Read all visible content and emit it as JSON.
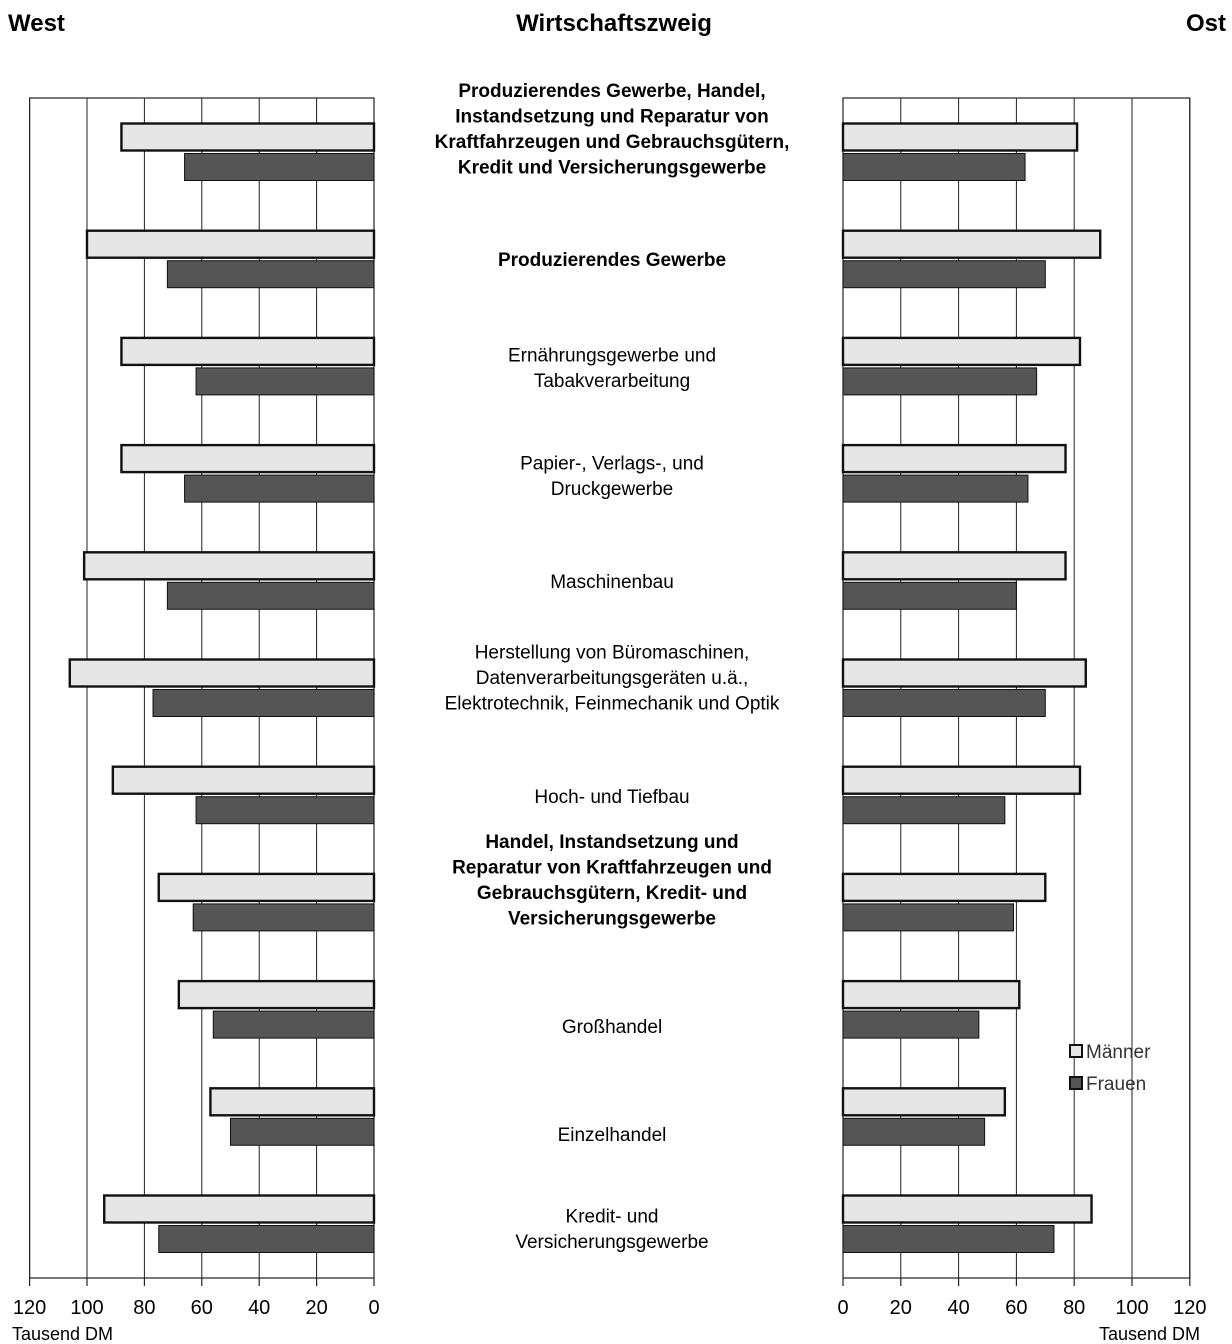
{
  "chart_data": {
    "type": "bar",
    "orientation": "horizontal",
    "layout": "butterfly",
    "header": {
      "left": "West",
      "center": "Wirtschaftszweig",
      "right": "Ost"
    },
    "categories": [
      {
        "lines": [
          "Produzierendes Gewerbe, Handel,",
          "Instandsetzung und Reparatur von",
          "Kraftfahrzeugen und Gebrauchsgütern,",
          "Kredit und Versicherungsgewerbe"
        ],
        "bold": true
      },
      {
        "lines": [
          "Produzierendes Gewerbe"
        ],
        "bold": true
      },
      {
        "lines": [
          "Ernährungsgewerbe und",
          "Tabakverarbeitung"
        ],
        "bold": false
      },
      {
        "lines": [
          "Papier-, Verlags-, und",
          "Druckgewerbe"
        ],
        "bold": false
      },
      {
        "lines": [
          "Maschinenbau"
        ],
        "bold": false
      },
      {
        "lines": [
          "Herstellung von Büromaschinen,",
          "Datenverarbeitungsgeräten u.ä.,",
          "Elektrotechnik, Feinmechanik und Optik"
        ],
        "bold": false
      },
      {
        "lines": [
          "Hoch- und Tiefbau"
        ],
        "bold": false
      },
      {
        "lines": [
          "Handel, Instandsetzung und",
          "Reparatur von Kraftfahrzeugen und",
          "Gebrauchsgütern, Kredit- und",
          "Versicherungsgewerbe"
        ],
        "bold": true
      },
      {
        "lines": [
          "Großhandel"
        ],
        "bold": false
      },
      {
        "lines": [
          "Einzelhandel"
        ],
        "bold": false
      },
      {
        "lines": [
          "Kredit- und",
          "Versicherungsgewerbe"
        ],
        "bold": false
      }
    ],
    "panels": [
      {
        "side": "West",
        "series": [
          {
            "name": "Männer",
            "values": [
              88,
              100,
              88,
              88,
              101,
              106,
              91,
              75,
              68,
              57,
              94
            ]
          },
          {
            "name": "Frauen",
            "values": [
              66,
              72,
              62,
              66,
              72,
              77,
              62,
              63,
              56,
              50,
              75
            ]
          }
        ]
      },
      {
        "side": "Ost",
        "series": [
          {
            "name": "Männer",
            "values": [
              81,
              89,
              82,
              77,
              77,
              84,
              82,
              70,
              61,
              56,
              86
            ]
          },
          {
            "name": "Frauen",
            "values": [
              63,
              70,
              67,
              64,
              60,
              70,
              56,
              59,
              47,
              49,
              73
            ]
          }
        ]
      }
    ],
    "xlim": [
      0,
      120
    ],
    "ticks": [
      "0",
      "20",
      "40",
      "60",
      "80",
      "100",
      "120"
    ],
    "xlabel": "Tausend DM",
    "legend": {
      "position": "right",
      "items": [
        "Männer",
        "Frauen"
      ]
    },
    "colors": {
      "Männer": "#e6e6e6",
      "Frauen": "#555555",
      "border": "#111111",
      "grid": "#222222"
    },
    "grid": true
  }
}
